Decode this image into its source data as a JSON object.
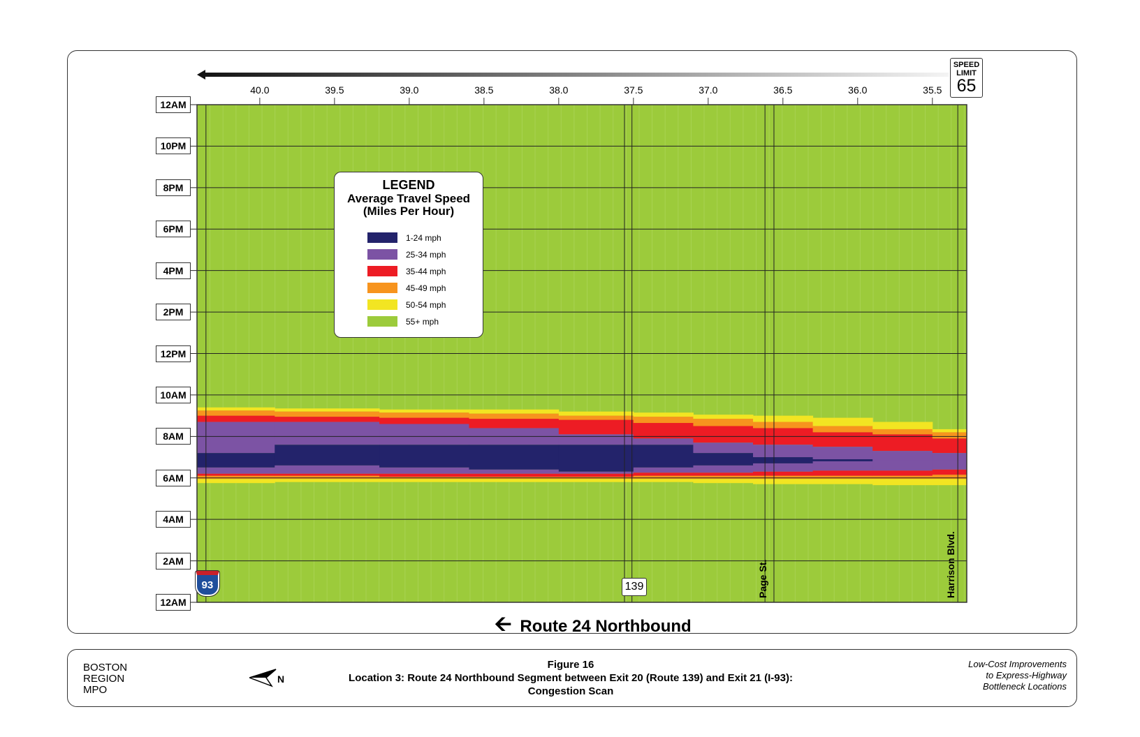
{
  "chart_data": {
    "type": "heatmap",
    "xlabel": "Route 24 Northbound",
    "x_ticks": [
      "40.0",
      "39.5",
      "39.0",
      "38.5",
      "38.0",
      "37.5",
      "37.0",
      "36.5",
      "36.0",
      "35.5"
    ],
    "xlim": [
      40.42,
      35.27
    ],
    "y_ticks": [
      "12AM",
      "2AM",
      "4AM",
      "6AM",
      "8AM",
      "10AM",
      "12PM",
      "2PM",
      "4PM",
      "6PM",
      "8PM",
      "10PM",
      "12AM"
    ],
    "ylim_hours": [
      0,
      24
    ],
    "grid": true,
    "legend": {
      "title": "LEGEND",
      "subtitle1": "Average Travel Speed",
      "subtitle2": "(Miles Per Hour)",
      "placement": "top-left",
      "items": [
        {
          "label": "1-24 mph",
          "color": "#23236b"
        },
        {
          "label": "25-34 mph",
          "color": "#7c53a4"
        },
        {
          "label": "35-44 mph",
          "color": "#ed1c24"
        },
        {
          "label": "45-49 mph",
          "color": "#f7941e"
        },
        {
          "label": "50-54 mph",
          "color": "#f2e522"
        },
        {
          "label": "55+ mph",
          "color": "#9ccb3b"
        }
      ]
    },
    "band_order": [
      4,
      3,
      2,
      1,
      0,
      1,
      2,
      3,
      4
    ],
    "columns": [
      {
        "miles": [
          40.42,
          39.9
        ],
        "boundaries_hours": [
          9.4,
          9.25,
          9.0,
          8.7,
          7.2,
          6.5,
          6.2,
          6.1,
          5.95,
          5.75
        ]
      },
      {
        "miles": [
          39.9,
          39.2
        ],
        "boundaries_hours": [
          9.35,
          9.2,
          8.95,
          8.7,
          7.6,
          6.6,
          6.2,
          6.1,
          5.95,
          5.8
        ]
      },
      {
        "miles": [
          39.2,
          38.6
        ],
        "boundaries_hours": [
          9.3,
          9.15,
          8.9,
          8.6,
          7.6,
          6.5,
          6.2,
          6.05,
          5.95,
          5.8
        ]
      },
      {
        "miles": [
          38.6,
          38.0
        ],
        "boundaries_hours": [
          9.3,
          9.1,
          8.85,
          8.4,
          7.6,
          6.4,
          6.2,
          6.05,
          5.95,
          5.8
        ]
      },
      {
        "miles": [
          38.0,
          37.5
        ],
        "boundaries_hours": [
          9.2,
          9.0,
          8.8,
          8.1,
          7.6,
          6.3,
          6.2,
          6.05,
          5.95,
          5.8
        ]
      },
      {
        "miles": [
          37.5,
          37.1
        ],
        "boundaries_hours": [
          9.15,
          8.95,
          8.65,
          7.9,
          7.6,
          6.5,
          6.25,
          6.1,
          5.95,
          5.8
        ]
      },
      {
        "miles": [
          37.1,
          36.7
        ],
        "boundaries_hours": [
          9.05,
          8.85,
          8.5,
          7.7,
          7.2,
          6.6,
          6.25,
          6.1,
          5.95,
          5.75
        ]
      },
      {
        "miles": [
          36.7,
          36.3
        ],
        "boundaries_hours": [
          9.0,
          8.7,
          8.4,
          7.6,
          7.0,
          6.7,
          6.3,
          6.1,
          5.95,
          5.7
        ]
      },
      {
        "miles": [
          36.3,
          35.9
        ],
        "boundaries_hours": [
          8.9,
          8.5,
          8.2,
          7.5,
          6.9,
          6.8,
          6.35,
          6.1,
          5.95,
          5.7
        ]
      },
      {
        "miles": [
          35.9,
          35.5
        ],
        "boundaries_hours": [
          8.7,
          8.35,
          8.1,
          7.3,
          6.85,
          6.85,
          6.35,
          6.1,
          5.95,
          5.65
        ]
      },
      {
        "miles": [
          35.5,
          35.27
        ],
        "boundaries_hours": [
          8.35,
          8.2,
          7.9,
          7.2,
          6.85,
          6.85,
          6.4,
          6.15,
          5.95,
          5.65
        ]
      }
    ],
    "landmarks": [
      {
        "label": "93",
        "kind": "interstate-shield",
        "miles": [
          40.36
        ]
      },
      {
        "label": "139",
        "kind": "route-shield",
        "miles": [
          37.56,
          37.51
        ]
      },
      {
        "label": "Page St.",
        "kind": "street",
        "miles": [
          36.62,
          36.56
        ]
      },
      {
        "label": "Harrison Blvd.",
        "kind": "street",
        "miles": [
          35.33
        ]
      }
    ]
  },
  "speed_sign": {
    "line1": "SPEED",
    "line2": "LIMIT",
    "value": "65"
  },
  "footer": {
    "org1": "BOSTON",
    "org2": "REGION",
    "org3": "MPO",
    "north": "N",
    "figure": "Figure 16",
    "caption1": "Location 3: Route 24 Northbound Segment between Exit 20 (Route 139) and Exit 21 (I-93):",
    "caption2": "Congestion Scan",
    "report1": "Low-Cost Improvements",
    "report2": "to Express-Highway",
    "report3": "Bottleneck Locations"
  }
}
